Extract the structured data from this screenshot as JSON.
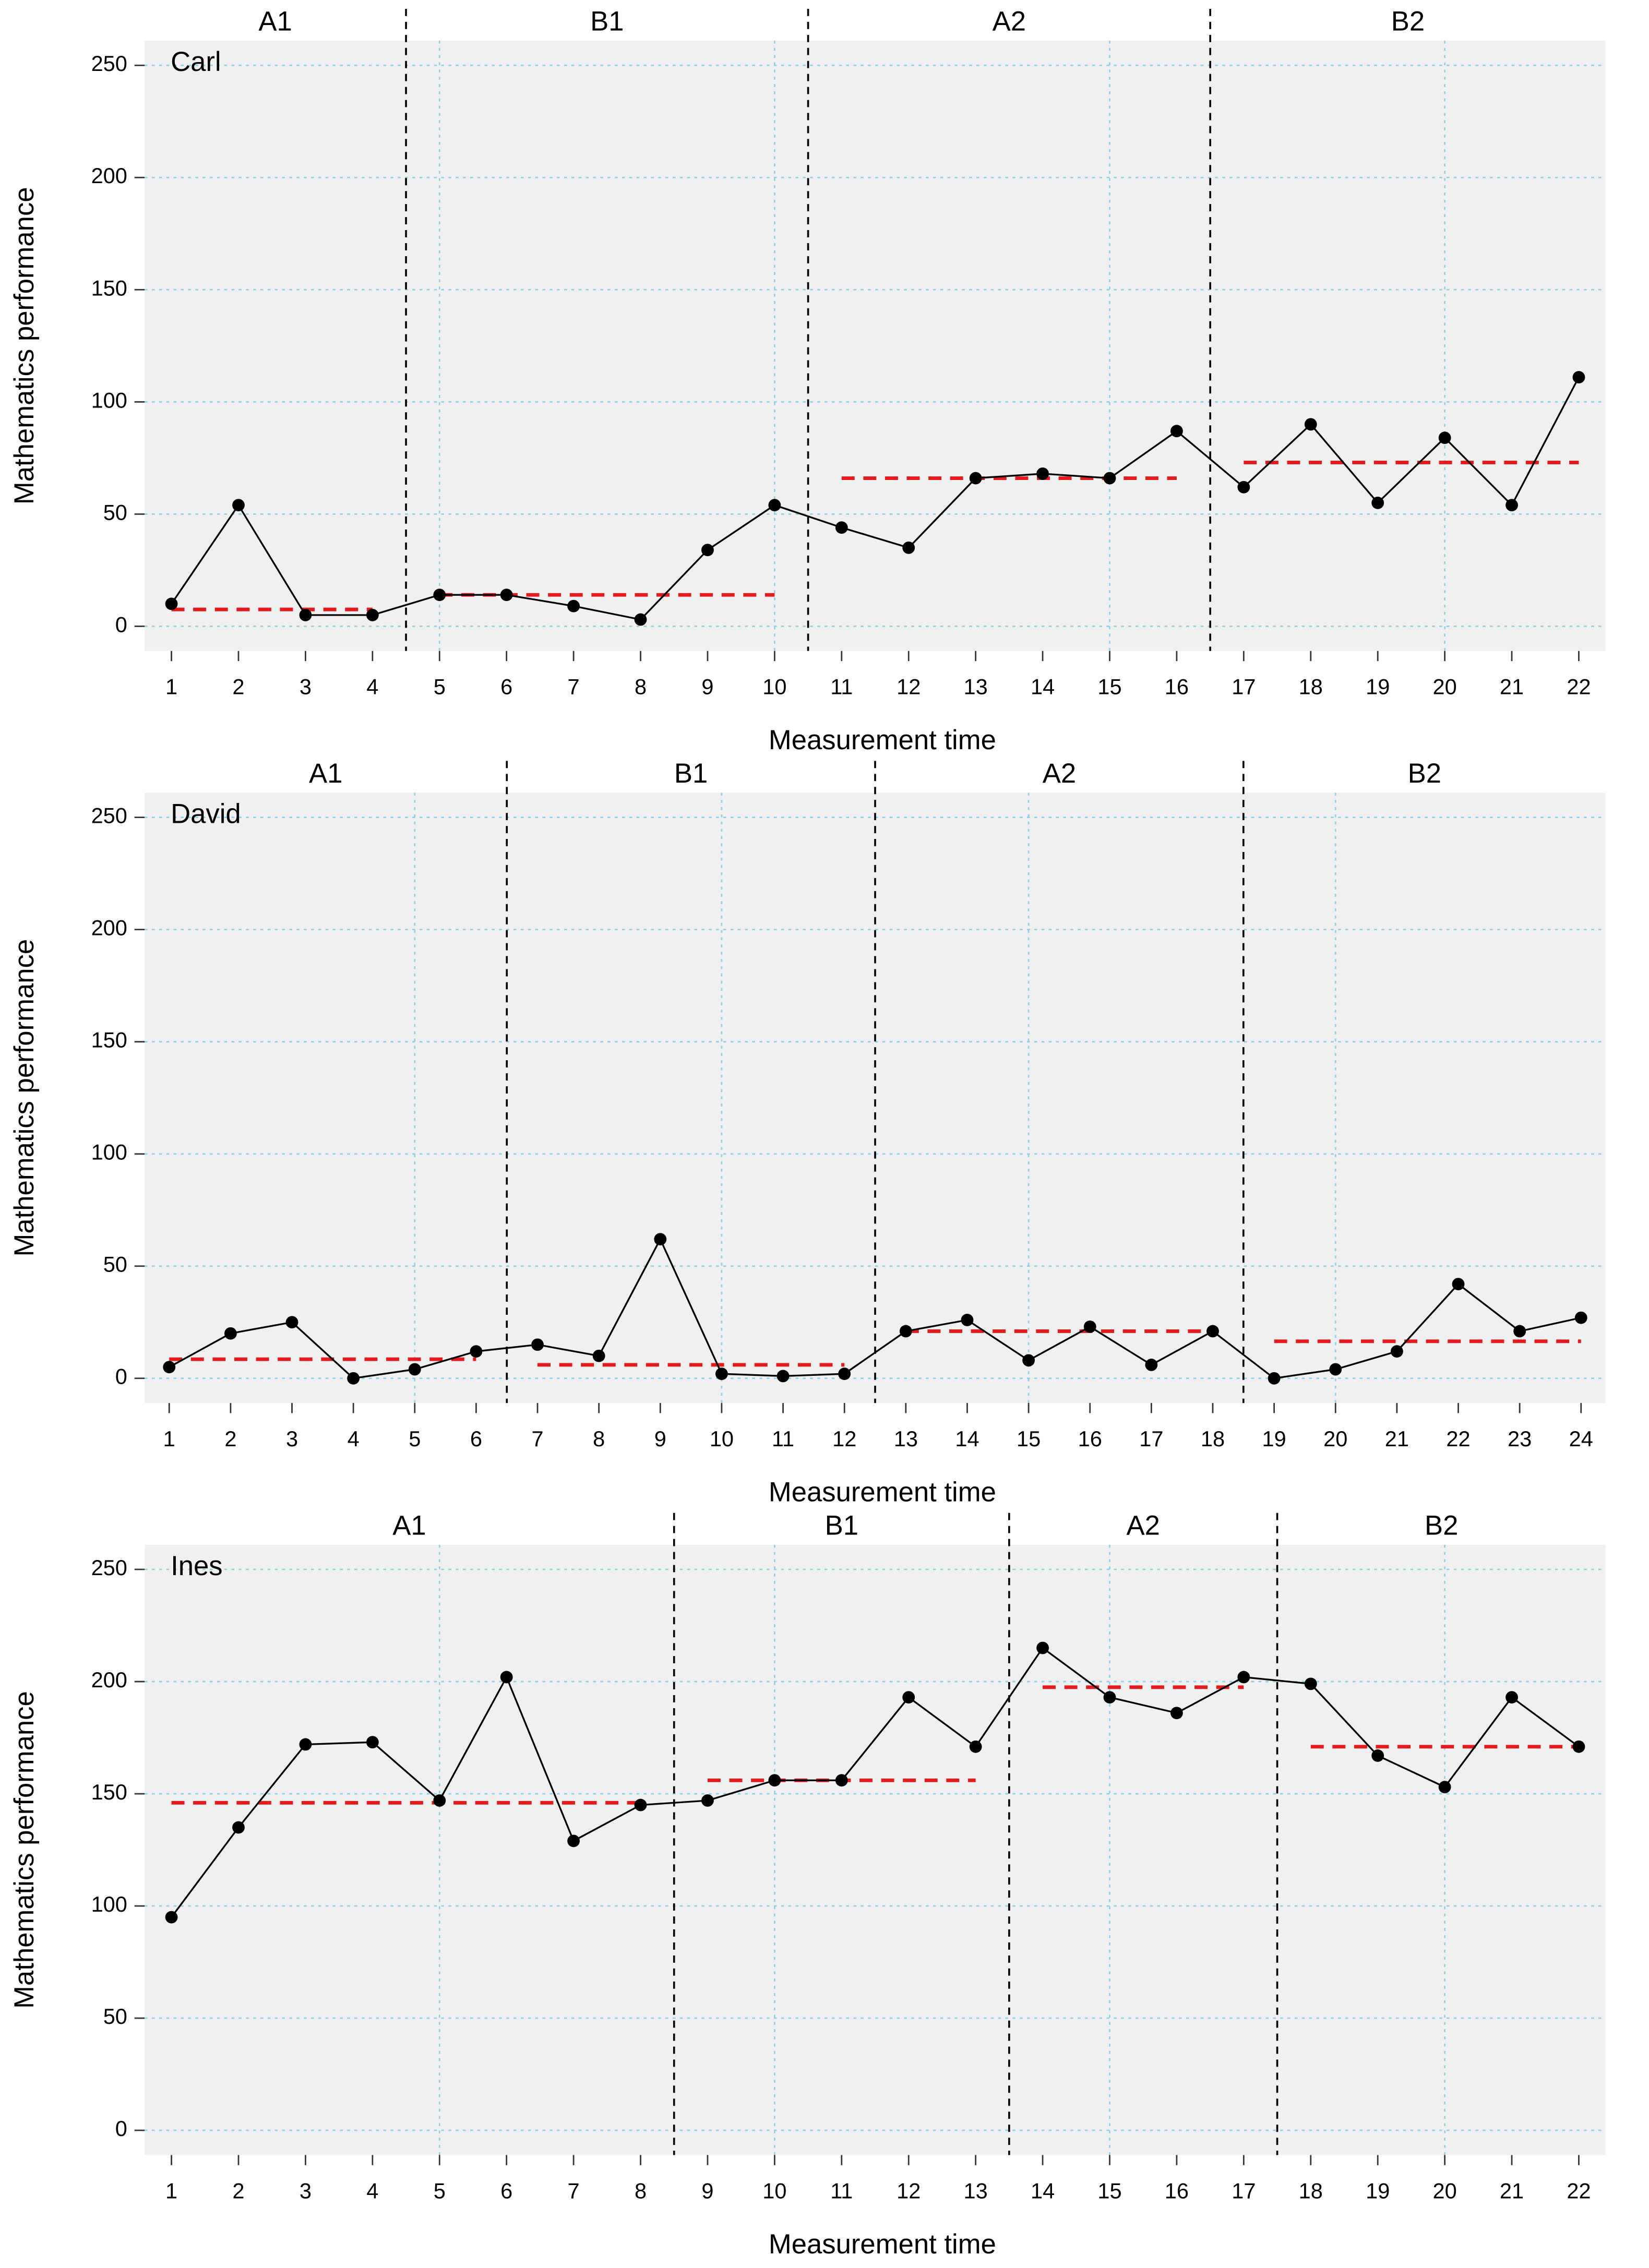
{
  "chart_data": [
    {
      "type": "line",
      "label": "Carl",
      "xlabel": "Measurement time",
      "ylabel": "Mathematics performance",
      "x": [
        1,
        2,
        3,
        4,
        5,
        6,
        7,
        8,
        9,
        10,
        11,
        12,
        13,
        14,
        15,
        16,
        17,
        18,
        19,
        20,
        21,
        22
      ],
      "values": [
        10,
        54,
        5,
        5,
        14,
        14,
        9,
        3,
        34,
        54,
        44,
        35,
        66,
        68,
        66,
        87,
        62,
        90,
        55,
        84,
        54,
        111
      ],
      "phases": [
        {
          "name": "A1",
          "start": 1,
          "end": 4,
          "median": 7.5
        },
        {
          "name": "B1",
          "start": 5,
          "end": 10,
          "median": 14
        },
        {
          "name": "A2",
          "start": 11,
          "end": 16,
          "median": 66
        },
        {
          "name": "B2",
          "start": 17,
          "end": 22,
          "median": 73
        }
      ],
      "xlim": [
        0.6,
        22.4
      ],
      "ylim": [
        -11,
        261
      ],
      "yticks": [
        0,
        50,
        100,
        150,
        200,
        250
      ],
      "xticks": [
        1,
        2,
        3,
        4,
        5,
        6,
        7,
        8,
        9,
        10,
        11,
        12,
        13,
        14,
        15,
        16,
        17,
        18,
        19,
        20,
        21,
        22
      ],
      "xgrid": [
        5,
        10,
        15,
        20
      ],
      "color": "#000000",
      "median_color": "#e41a1c",
      "grid": true
    },
    {
      "type": "line",
      "label": "David",
      "xlabel": "Measurement time",
      "ylabel": "Mathematics performance",
      "x": [
        1,
        2,
        3,
        4,
        5,
        6,
        7,
        8,
        9,
        10,
        11,
        12,
        13,
        14,
        15,
        16,
        17,
        18,
        19,
        20,
        21,
        22,
        23,
        24
      ],
      "values": [
        5,
        20,
        25,
        0,
        4,
        12,
        15,
        10,
        62,
        2,
        1,
        2,
        21,
        26,
        8,
        23,
        6,
        21,
        0,
        4,
        12,
        42,
        21,
        27
      ],
      "phases": [
        {
          "name": "A1",
          "start": 1,
          "end": 6,
          "median": 8.5
        },
        {
          "name": "B1",
          "start": 7,
          "end": 12,
          "median": 6
        },
        {
          "name": "A2",
          "start": 13,
          "end": 18,
          "median": 21
        },
        {
          "name": "B2",
          "start": 19,
          "end": 24,
          "median": 16.5
        }
      ],
      "xlim": [
        0.6,
        24.4
      ],
      "ylim": [
        -11,
        261
      ],
      "yticks": [
        0,
        50,
        100,
        150,
        200,
        250
      ],
      "xticks": [
        1,
        2,
        3,
        4,
        5,
        6,
        7,
        8,
        9,
        10,
        11,
        12,
        13,
        14,
        15,
        16,
        17,
        18,
        19,
        20,
        21,
        22,
        23,
        24
      ],
      "xgrid": [
        5,
        10,
        15,
        20
      ],
      "color": "#000000",
      "median_color": "#e41a1c",
      "grid": true
    },
    {
      "type": "line",
      "label": "Ines",
      "xlabel": "Measurement time",
      "ylabel": "Mathematics performance",
      "x": [
        1,
        2,
        3,
        4,
        5,
        6,
        7,
        8,
        9,
        10,
        11,
        12,
        13,
        14,
        15,
        16,
        17,
        18,
        19,
        20,
        21,
        22
      ],
      "values": [
        95,
        135,
        172,
        173,
        147,
        202,
        129,
        145,
        147,
        156,
        156,
        193,
        171,
        215,
        193,
        186,
        202,
        199,
        167,
        153,
        193,
        171
      ],
      "phases": [
        {
          "name": "A1",
          "start": 1,
          "end": 8,
          "median": 146
        },
        {
          "name": "B1",
          "start": 9,
          "end": 13,
          "median": 156
        },
        {
          "name": "A2",
          "start": 14,
          "end": 17,
          "median": 197.5
        },
        {
          "name": "B2",
          "start": 18,
          "end": 22,
          "median": 171
        }
      ],
      "xlim": [
        0.6,
        22.4
      ],
      "ylim": [
        -11,
        261
      ],
      "yticks": [
        0,
        50,
        100,
        150,
        200,
        250
      ],
      "xticks": [
        1,
        2,
        3,
        4,
        5,
        6,
        7,
        8,
        9,
        10,
        11,
        12,
        13,
        14,
        15,
        16,
        17,
        18,
        19,
        20,
        21,
        22
      ],
      "xgrid": [
        5,
        10,
        15,
        20
      ],
      "color": "#000000",
      "median_color": "#e41a1c",
      "grid": true
    }
  ]
}
